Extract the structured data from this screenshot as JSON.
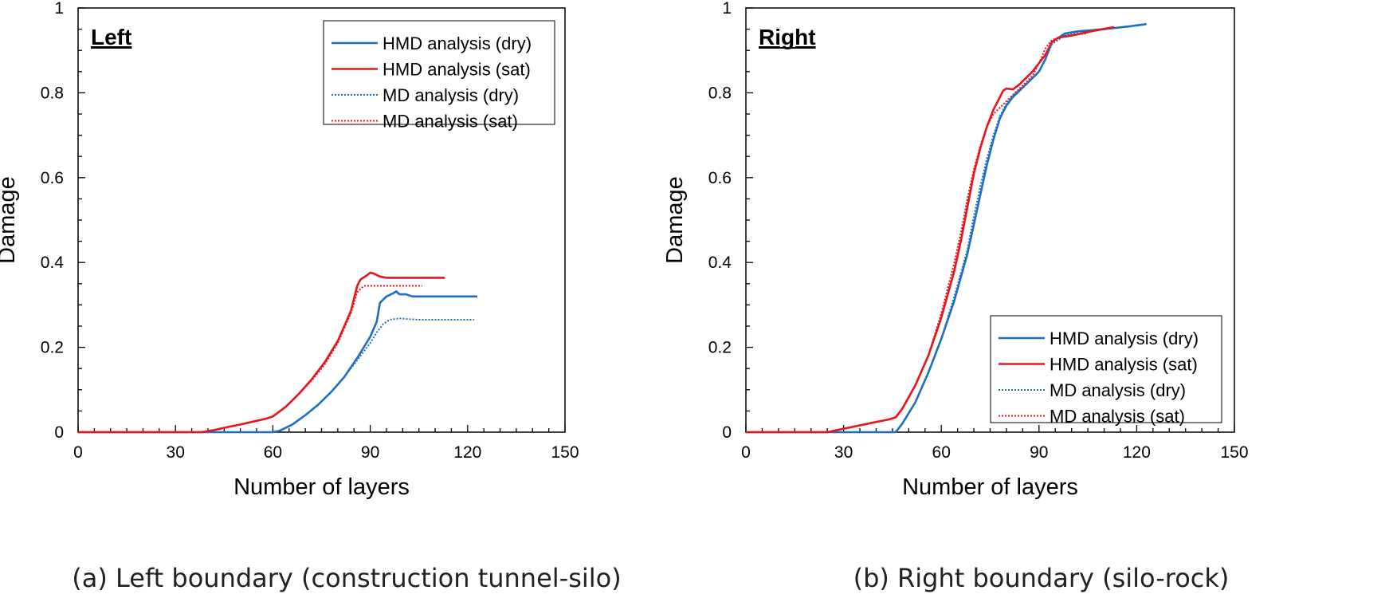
{
  "chart_data": [
    {
      "type": "line",
      "panel_tag": "Left",
      "caption": "(a) Left boundary (construction tunnel-silo)",
      "xlabel": "Number of layers",
      "ylabel": "Damage",
      "xlim": [
        0,
        150
      ],
      "ylim": [
        0,
        1
      ],
      "xticks": [
        "0",
        "30",
        "60",
        "90",
        "120",
        "150"
      ],
      "yticks": [
        "0",
        "0.2",
        "0.4",
        "0.6",
        "0.8",
        "1"
      ],
      "legend_position": "top-right",
      "grid": false,
      "series": [
        {
          "name": "HMD analysis (dry)",
          "color": "#1f6fc0",
          "style": "solid",
          "x": [
            0,
            60,
            62,
            66,
            70,
            74,
            78,
            82,
            86,
            90,
            92,
            93,
            95,
            97,
            98,
            99,
            101,
            103,
            110,
            123
          ],
          "y": [
            0,
            0,
            0.003,
            0.018,
            0.04,
            0.065,
            0.095,
            0.13,
            0.175,
            0.225,
            0.26,
            0.305,
            0.32,
            0.327,
            0.332,
            0.325,
            0.325,
            0.32,
            0.32,
            0.32
          ]
        },
        {
          "name": "HMD analysis (sat)",
          "color": "#e8141b",
          "style": "solid",
          "x": [
            0,
            38,
            42,
            46,
            50,
            54,
            58,
            60,
            64,
            68,
            72,
            76,
            80,
            84,
            86,
            87,
            89,
            90,
            91,
            93,
            95,
            100,
            113
          ],
          "y": [
            0,
            0,
            0.005,
            0.012,
            0.018,
            0.025,
            0.032,
            0.037,
            0.06,
            0.09,
            0.125,
            0.165,
            0.215,
            0.285,
            0.345,
            0.36,
            0.37,
            0.376,
            0.374,
            0.367,
            0.364,
            0.364,
            0.364
          ]
        },
        {
          "name": "MD analysis (dry)",
          "color": "#1f6fc0",
          "style": "dotted",
          "x": [
            60,
            62,
            66,
            70,
            74,
            78,
            82,
            86,
            90,
            92,
            94,
            96,
            99,
            105,
            122
          ],
          "y": [
            0,
            0.003,
            0.018,
            0.04,
            0.065,
            0.095,
            0.13,
            0.17,
            0.21,
            0.235,
            0.255,
            0.265,
            0.268,
            0.265,
            0.265
          ]
        },
        {
          "name": "MD analysis (sat)",
          "color": "#e8141b",
          "style": "dotted",
          "x": [
            38,
            42,
            46,
            50,
            54,
            58,
            60,
            64,
            68,
            72,
            76,
            80,
            84,
            86,
            88,
            92,
            100,
            106
          ],
          "y": [
            0,
            0.005,
            0.012,
            0.018,
            0.025,
            0.032,
            0.037,
            0.06,
            0.09,
            0.122,
            0.16,
            0.21,
            0.28,
            0.33,
            0.345,
            0.345,
            0.345,
            0.345
          ]
        }
      ]
    },
    {
      "type": "line",
      "panel_tag": "Right",
      "caption": "(b) Right boundary (silo-rock)",
      "xlabel": "Number of layers",
      "ylabel": "Damage",
      "xlim": [
        0,
        150
      ],
      "ylim": [
        0,
        1
      ],
      "xticks": [
        "0",
        "30",
        "60",
        "90",
        "120",
        "150"
      ],
      "yticks": [
        "0",
        "0.2",
        "0.4",
        "0.6",
        "0.8",
        "1"
      ],
      "legend_position": "bottom-right",
      "grid": false,
      "series": [
        {
          "name": "HMD analysis (dry)",
          "color": "#1f6fc0",
          "style": "solid",
          "x": [
            0,
            46,
            48,
            52,
            56,
            60,
            64,
            68,
            70,
            72,
            74,
            76,
            78,
            80,
            82,
            86,
            90,
            92,
            94,
            98,
            102,
            110,
            118,
            123
          ],
          "y": [
            0,
            0,
            0.02,
            0.07,
            0.14,
            0.22,
            0.31,
            0.42,
            0.49,
            0.56,
            0.63,
            0.69,
            0.74,
            0.77,
            0.79,
            0.82,
            0.85,
            0.88,
            0.92,
            0.94,
            0.945,
            0.95,
            0.957,
            0.962
          ]
        },
        {
          "name": "HMD analysis (sat)",
          "color": "#e8141b",
          "style": "solid",
          "x": [
            0,
            25,
            30,
            35,
            40,
            44,
            46,
            48,
            52,
            56,
            60,
            64,
            66,
            68,
            70,
            72,
            74,
            76,
            78,
            79,
            80,
            82,
            84,
            86,
            88,
            90,
            92,
            94,
            96,
            100,
            106,
            113
          ],
          "y": [
            0,
            0,
            0.008,
            0.016,
            0.024,
            0.03,
            0.035,
            0.055,
            0.11,
            0.18,
            0.27,
            0.38,
            0.45,
            0.53,
            0.61,
            0.67,
            0.72,
            0.76,
            0.79,
            0.805,
            0.81,
            0.808,
            0.82,
            0.835,
            0.85,
            0.87,
            0.89,
            0.92,
            0.93,
            0.935,
            0.945,
            0.955
          ]
        },
        {
          "name": "MD analysis (dry)",
          "color": "#1f6fc0",
          "style": "dotted",
          "x": [
            46,
            48,
            52,
            56,
            60,
            64,
            68,
            70,
            72,
            74,
            76,
            78,
            80,
            82,
            86,
            90,
            92,
            94,
            98,
            103
          ],
          "y": [
            0,
            0.02,
            0.07,
            0.14,
            0.22,
            0.32,
            0.43,
            0.51,
            0.58,
            0.645,
            0.7,
            0.745,
            0.775,
            0.795,
            0.82,
            0.85,
            0.88,
            0.915,
            0.935,
            0.945
          ]
        },
        {
          "name": "MD analysis (sat)",
          "color": "#e8141b",
          "style": "dotted",
          "x": [
            25,
            30,
            35,
            40,
            44,
            46,
            48,
            52,
            56,
            60,
            64,
            66,
            68,
            70,
            72,
            74,
            76,
            78,
            80,
            84,
            88,
            90,
            92,
            94,
            98,
            105
          ],
          "y": [
            0,
            0.008,
            0.016,
            0.024,
            0.03,
            0.035,
            0.055,
            0.11,
            0.18,
            0.28,
            0.4,
            0.47,
            0.55,
            0.62,
            0.675,
            0.72,
            0.75,
            0.765,
            0.78,
            0.81,
            0.84,
            0.87,
            0.905,
            0.925,
            0.935,
            0.94
          ]
        }
      ]
    }
  ]
}
